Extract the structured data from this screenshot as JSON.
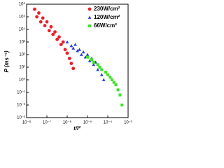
{
  "chart_data": {
    "type": "scatter",
    "log_x": true,
    "log_y": true,
    "x_label": "t/l²",
    "y_label": "P (ms⁻¹)",
    "legend": "upper right",
    "xlim": [
      1e-08,
      0.001
    ],
    "xticks": [
      {
        "value": 1e-08,
        "label": "10⁻⁸"
      },
      {
        "value": 1e-07,
        "label": "10⁻⁷"
      },
      {
        "value": 1e-06,
        "label": "10⁻⁶"
      },
      {
        "value": 1e-05,
        "label": "10⁻⁵"
      },
      {
        "value": 0.0001,
        "label": "10⁻⁴"
      },
      {
        "value": 0.001,
        "label": "10⁻³"
      }
    ],
    "ylim": [
      0.001,
      1000000
    ],
    "yticks": [
      {
        "value": 0.001,
        "label": "10⁻³"
      },
      {
        "value": 0.01,
        "label": "10⁻²"
      },
      {
        "value": 0.1,
        "label": "10⁻¹"
      },
      {
        "value": 1,
        "label": "10⁰"
      },
      {
        "value": 10,
        "label": "10¹"
      },
      {
        "value": 100,
        "label": "10²"
      },
      {
        "value": 1000,
        "label": "10³"
      },
      {
        "value": 10000,
        "label": "10⁴"
      },
      {
        "value": 100000,
        "label": "10⁵"
      },
      {
        "value": 1000000,
        "label": "10⁶"
      }
    ],
    "series": [
      {
        "name": "230W/cm²",
        "color": "#e8202a",
        "marker": "circle",
        "x": [
          2.5e-08,
          3.2e-08,
          4e-08,
          5e-08,
          6.3e-08,
          7.9e-08,
          1e-07,
          1.3e-07,
          1.6e-07,
          2e-07,
          2.5e-07,
          3.2e-07,
          4e-07,
          5e-07,
          6.3e-07,
          7.9e-07,
          1e-06,
          1.3e-06,
          1.6e-06,
          2e-06
        ],
        "values": [
          400000,
          100000,
          200000,
          40000,
          80000,
          20000,
          40000,
          8000,
          16000,
          4000,
          6300,
          1600,
          2500,
          630,
          1000,
          250,
          130,
          50,
          20,
          8
        ]
      },
      {
        "name": "120W/cm²",
        "color": "#2a3fd6",
        "marker": "triangle",
        "x": [
          1e-06,
          1.6e-06,
          2e-06,
          2.5e-06,
          3.2e-06,
          4e-06,
          5e-06,
          6.3e-06,
          7.9e-06,
          1e-05,
          1.3e-05,
          1.6e-05,
          2e-05,
          2.5e-05,
          3.2e-05,
          4e-05,
          5e-05,
          6.3e-05
        ],
        "values": [
          1000,
          500,
          320,
          630,
          200,
          250,
          100,
          160,
          63,
          100,
          32,
          50,
          16,
          25,
          6.3,
          10,
          2.5,
          1
        ]
      },
      {
        "name": "66W/cm²",
        "color": "#3fe02a",
        "marker": "square",
        "x": [
          1e-05,
          1.6e-05,
          2e-05,
          3.2e-05,
          4e-05,
          5e-05,
          7.9e-05,
          0.0001,
          0.00013,
          0.00016,
          0.0002,
          0.00025,
          0.00032,
          0.0004,
          0.0005
        ],
        "values": [
          63,
          40,
          25,
          16,
          10,
          6.3,
          4,
          2.5,
          1.6,
          1,
          0.63,
          0.4,
          0.16,
          0.063,
          0.01
        ]
      }
    ]
  }
}
